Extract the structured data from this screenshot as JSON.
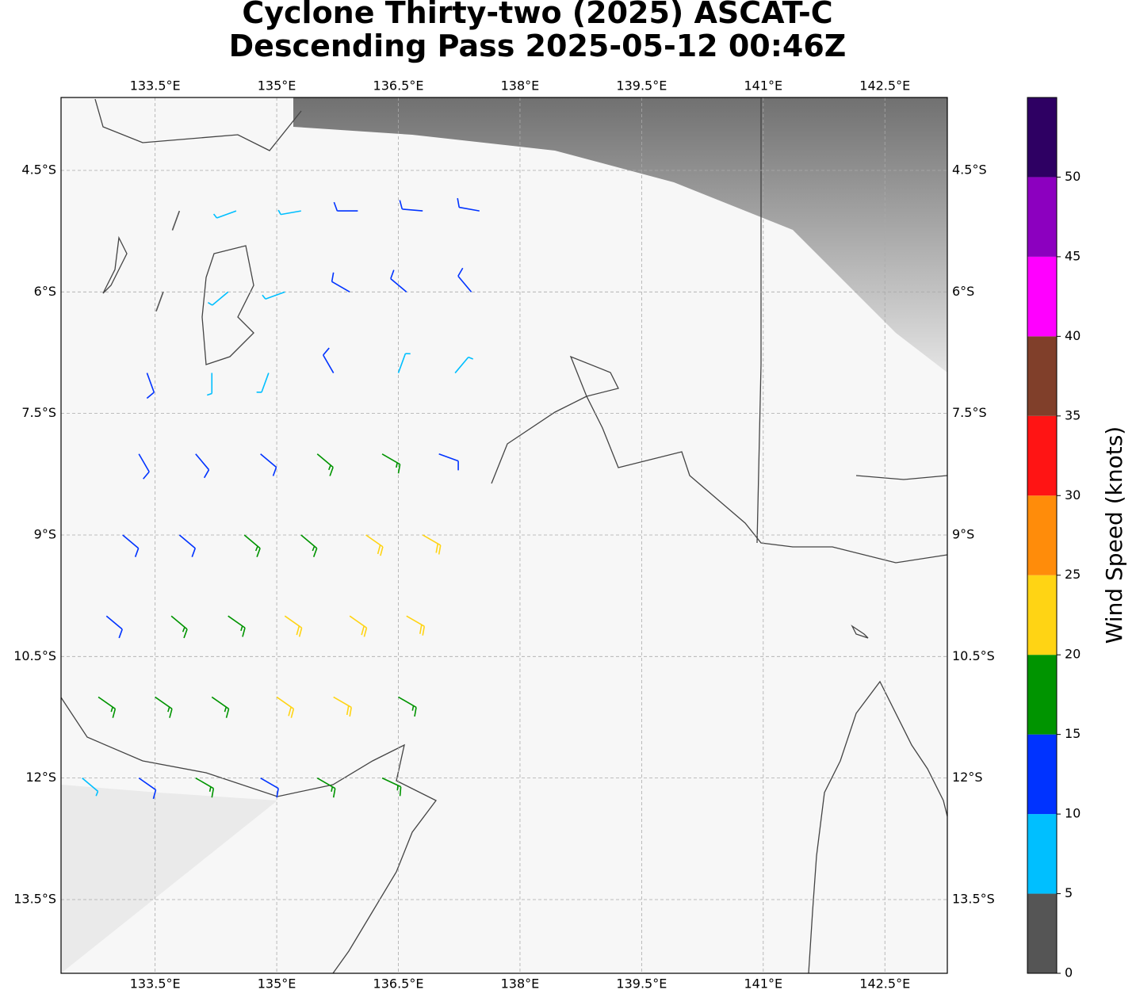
{
  "chart_data": {
    "type": "barb",
    "title": "Cyclone Thirty-two (2025) ASCAT-C",
    "subtitle": "Descending Pass 2025-05-12 00:46Z",
    "xlim": [
      132.34,
      143.27
    ],
    "ylim": [
      -14.41,
      -3.6
    ],
    "xticks": [
      {
        "value": 133.5,
        "label": "133.5°E"
      },
      {
        "value": 135,
        "label": "135°E"
      },
      {
        "value": 136.5,
        "label": "136.5°E"
      },
      {
        "value": 138,
        "label": "138°E"
      },
      {
        "value": 139.5,
        "label": "139.5°E"
      },
      {
        "value": 141,
        "label": "141°E"
      },
      {
        "value": 142.5,
        "label": "142.5°E"
      }
    ],
    "yticks": [
      {
        "value": -4.5,
        "label": "4.5°S"
      },
      {
        "value": -6,
        "label": "6°S"
      },
      {
        "value": -7.5,
        "label": "7.5°S"
      },
      {
        "value": -9,
        "label": "9°S"
      },
      {
        "value": -10.5,
        "label": "10.5°S"
      },
      {
        "value": -12,
        "label": "12°S"
      },
      {
        "value": -13.5,
        "label": "13.5°S"
      }
    ],
    "grid": true,
    "colorbar": {
      "label": "Wind Speed (knots)",
      "lim": [
        0,
        55
      ],
      "ticks": [
        0,
        5,
        10,
        15,
        20,
        25,
        30,
        35,
        40,
        45,
        50
      ],
      "colors": [
        "#555555",
        "#00bfff",
        "#0033ff",
        "#009400",
        "#ffd414",
        "#ff8c0a",
        "#ff1414",
        "#803f2a",
        "#ff00ff",
        "#8c00bf",
        "#2e0063"
      ]
    },
    "lon": [
      133.8,
      134.5,
      135.3,
      136.0,
      136.8,
      137.5,
      133.6,
      134.4,
      135.1,
      135.9,
      136.6,
      137.4,
      133.4,
      134.2,
      134.9,
      135.7,
      136.5,
      137.2,
      133.3,
      134.0,
      134.8,
      135.5,
      136.3,
      137.0,
      133.1,
      133.8,
      134.6,
      135.3,
      136.1,
      136.8,
      132.9,
      133.7,
      134.4,
      135.1,
      135.9,
      136.6,
      132.8,
      133.5,
      134.2,
      135.0,
      135.7,
      136.5,
      132.6,
      133.3,
      134.0,
      134.8,
      135.5,
      136.3
    ],
    "lat": [
      -5,
      -5,
      -5,
      -5,
      -5,
      -5,
      -6,
      -6,
      -6,
      -6,
      -6,
      -6,
      -7,
      -7,
      -7,
      -7,
      -7,
      -7,
      -8,
      -8,
      -8,
      -8,
      -8,
      -8,
      -9,
      -9,
      -9,
      -9,
      -9,
      -9,
      -10,
      -10,
      -10,
      -10,
      -10,
      -10,
      -11,
      -11,
      -11,
      -11,
      -11,
      -11,
      -12,
      -12,
      -12,
      -12,
      -12,
      -12
    ],
    "speed": [
      4,
      8,
      8,
      12,
      12,
      11,
      4,
      8,
      9,
      12,
      12,
      13,
      11,
      9,
      7,
      12,
      8,
      9,
      13,
      12,
      14,
      17,
      17,
      12,
      12,
      14,
      17,
      18,
      22,
      22,
      13,
      17,
      19,
      22,
      23,
      22,
      17,
      18,
      18,
      22,
      22,
      18,
      8,
      14,
      17,
      13,
      16,
      19
    ],
    "dir": [
      200,
      250,
      260,
      270,
      275,
      280,
      200,
      230,
      250,
      300,
      310,
      320,
      160,
      180,
      200,
      330,
      20,
      40,
      150,
      140,
      130,
      130,
      120,
      110,
      130,
      130,
      130,
      130,
      125,
      120,
      130,
      130,
      125,
      125,
      125,
      120,
      125,
      125,
      125,
      125,
      120,
      120,
      130,
      125,
      120,
      120,
      120,
      115
    ]
  }
}
